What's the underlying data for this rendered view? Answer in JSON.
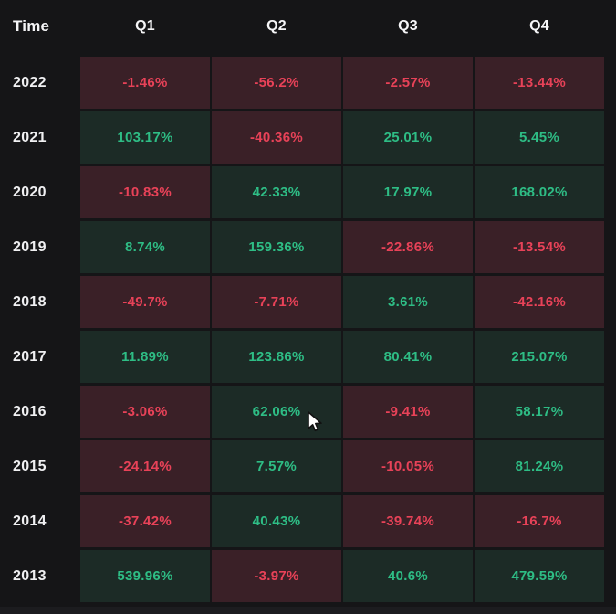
{
  "header": {
    "time_label": "Time",
    "columns": [
      "Q1",
      "Q2",
      "Q3",
      "Q4"
    ]
  },
  "rows": [
    {
      "year": "2022",
      "cells": [
        {
          "text": "-1.46%",
          "sign": "neg"
        },
        {
          "text": "-56.2%",
          "sign": "neg"
        },
        {
          "text": "-2.57%",
          "sign": "neg"
        },
        {
          "text": "-13.44%",
          "sign": "neg"
        }
      ]
    },
    {
      "year": "2021",
      "cells": [
        {
          "text": "103.17%",
          "sign": "pos"
        },
        {
          "text": "-40.36%",
          "sign": "neg"
        },
        {
          "text": "25.01%",
          "sign": "pos"
        },
        {
          "text": "5.45%",
          "sign": "pos"
        }
      ]
    },
    {
      "year": "2020",
      "cells": [
        {
          "text": "-10.83%",
          "sign": "neg"
        },
        {
          "text": "42.33%",
          "sign": "pos"
        },
        {
          "text": "17.97%",
          "sign": "pos"
        },
        {
          "text": "168.02%",
          "sign": "pos"
        }
      ]
    },
    {
      "year": "2019",
      "cells": [
        {
          "text": "8.74%",
          "sign": "pos"
        },
        {
          "text": "159.36%",
          "sign": "pos"
        },
        {
          "text": "-22.86%",
          "sign": "neg"
        },
        {
          "text": "-13.54%",
          "sign": "neg"
        }
      ]
    },
    {
      "year": "2018",
      "cells": [
        {
          "text": "-49.7%",
          "sign": "neg"
        },
        {
          "text": "-7.71%",
          "sign": "neg"
        },
        {
          "text": "3.61%",
          "sign": "pos"
        },
        {
          "text": "-42.16%",
          "sign": "neg"
        }
      ]
    },
    {
      "year": "2017",
      "cells": [
        {
          "text": "11.89%",
          "sign": "pos"
        },
        {
          "text": "123.86%",
          "sign": "pos"
        },
        {
          "text": "80.41%",
          "sign": "pos"
        },
        {
          "text": "215.07%",
          "sign": "pos"
        }
      ]
    },
    {
      "year": "2016",
      "cells": [
        {
          "text": "-3.06%",
          "sign": "neg"
        },
        {
          "text": "62.06%",
          "sign": "pos"
        },
        {
          "text": "-9.41%",
          "sign": "neg"
        },
        {
          "text": "58.17%",
          "sign": "pos"
        }
      ]
    },
    {
      "year": "2015",
      "cells": [
        {
          "text": "-24.14%",
          "sign": "neg"
        },
        {
          "text": "7.57%",
          "sign": "pos"
        },
        {
          "text": "-10.05%",
          "sign": "neg"
        },
        {
          "text": "81.24%",
          "sign": "pos"
        }
      ]
    },
    {
      "year": "2014",
      "cells": [
        {
          "text": "-37.42%",
          "sign": "neg"
        },
        {
          "text": "40.43%",
          "sign": "pos"
        },
        {
          "text": "-39.74%",
          "sign": "neg"
        },
        {
          "text": "-16.7%",
          "sign": "neg"
        }
      ]
    },
    {
      "year": "2013",
      "cells": [
        {
          "text": "539.96%",
          "sign": "pos"
        },
        {
          "text": "-3.97%",
          "sign": "neg"
        },
        {
          "text": "40.6%",
          "sign": "pos"
        },
        {
          "text": "479.59%",
          "sign": "pos"
        }
      ]
    }
  ],
  "colors": {
    "background": "#151517",
    "positive_text": "#2ebd85",
    "negative_text": "#e84258",
    "positive_cell_bg": "#1c2b26",
    "negative_cell_bg": "#3a2027",
    "label_text": "#f5f5f7"
  },
  "chart_data": {
    "type": "heatmap",
    "title": "",
    "row_label_header": "Time",
    "x_categories": [
      "Q1",
      "Q2",
      "Q3",
      "Q4"
    ],
    "y_categories": [
      "2022",
      "2021",
      "2020",
      "2019",
      "2018",
      "2017",
      "2016",
      "2015",
      "2014",
      "2013"
    ],
    "values_percent": [
      [
        -1.46,
        -56.2,
        -2.57,
        -13.44
      ],
      [
        103.17,
        -40.36,
        25.01,
        5.45
      ],
      [
        -10.83,
        42.33,
        17.97,
        168.02
      ],
      [
        8.74,
        159.36,
        -22.86,
        -13.54
      ],
      [
        -49.7,
        -7.71,
        3.61,
        -42.16
      ],
      [
        11.89,
        123.86,
        80.41,
        215.07
      ],
      [
        -3.06,
        62.06,
        -9.41,
        58.17
      ],
      [
        -24.14,
        7.57,
        -10.05,
        81.24
      ],
      [
        -37.42,
        40.43,
        -39.74,
        -16.7
      ],
      [
        539.96,
        -3.97,
        40.6,
        479.59
      ]
    ],
    "color_coding": "green cell = positive return, red cell = negative return",
    "grid": false,
    "legend_position": "none"
  }
}
